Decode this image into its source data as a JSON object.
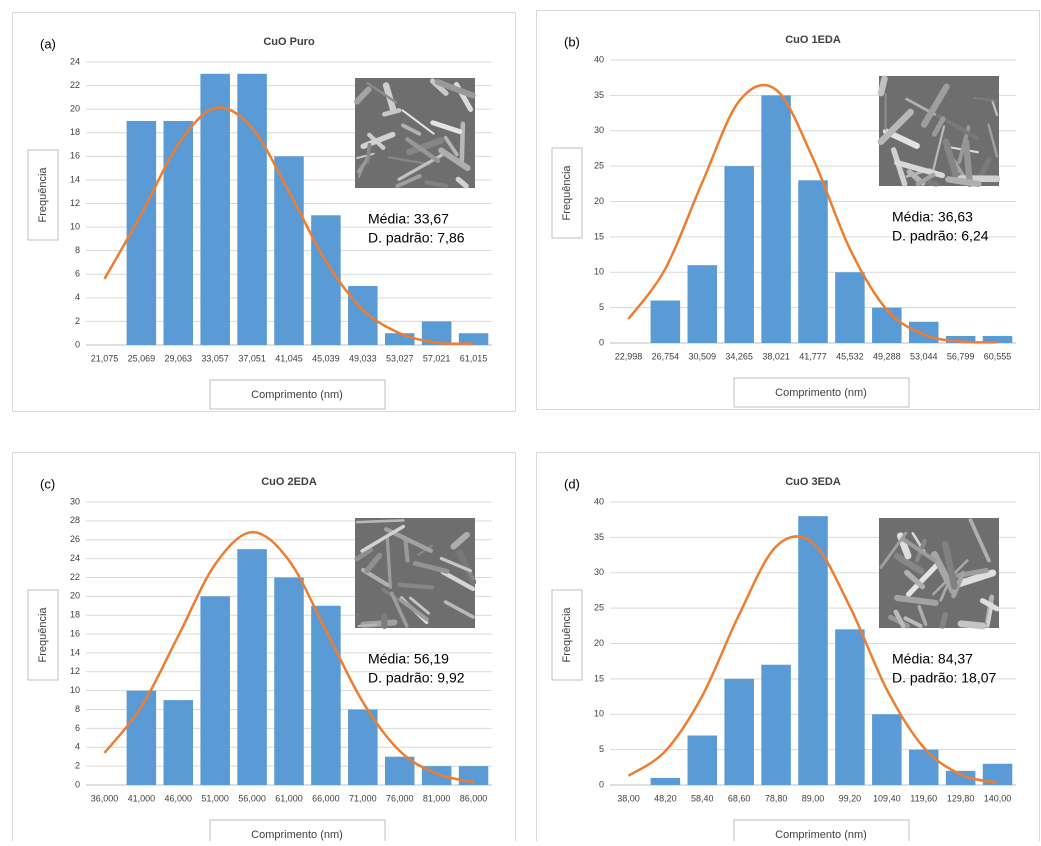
{
  "chart_data": [
    {
      "type": "bar",
      "panel_label": "(a)",
      "title": "CuO Puro",
      "ylabel": "Frequência",
      "xlabel": "Comprimento (nm)",
      "categories": [
        "21,075",
        "25,069",
        "29,063",
        "33,057",
        "37,051",
        "41,045",
        "45,039",
        "49,033",
        "53,027",
        "57,021",
        "61,015"
      ],
      "series": [
        {
          "type": "bar",
          "color": "#5b9bd5",
          "values": [
            0,
            19,
            19,
            23,
            23,
            16,
            11,
            5,
            1,
            2,
            1
          ]
        },
        {
          "type": "line",
          "color": "#ed7d31",
          "values": [
            5.6,
            11.1,
            17.0,
            20.1,
            18.4,
            13.0,
            7.1,
            3.0,
            1.0,
            0.2,
            0.1
          ]
        }
      ],
      "ylim": [
        0,
        24
      ],
      "yticks": [
        0,
        2,
        4,
        6,
        8,
        10,
        12,
        14,
        16,
        18,
        20,
        22,
        24
      ],
      "grid": true,
      "annotations": [
        "Média: 33,67",
        "D. padrão: 7,86"
      ]
    },
    {
      "type": "bar",
      "panel_label": "(b)",
      "title": "CuO 1EDA",
      "ylabel": "Frequência",
      "xlabel": "Comprimento (nm)",
      "categories": [
        "22,998",
        "26,754",
        "30,509",
        "34,265",
        "38,021",
        "41,777",
        "45,532",
        "49,288",
        "53,044",
        "56,799",
        "60,555"
      ],
      "series": [
        {
          "type": "bar",
          "color": "#5b9bd5",
          "values": [
            0,
            6,
            11,
            25,
            35,
            23,
            10,
            5,
            3,
            1,
            1
          ]
        },
        {
          "type": "line",
          "color": "#ed7d31",
          "values": [
            3.4,
            10.5,
            22.7,
            34.2,
            35.8,
            26.1,
            13.3,
            4.7,
            1.2,
            0.2,
            0.1
          ]
        }
      ],
      "ylim": [
        0,
        40
      ],
      "yticks": [
        0,
        5,
        10,
        15,
        20,
        25,
        30,
        35,
        40
      ],
      "grid": true,
      "annotations": [
        "Média: 36,63",
        "D. padrão: 6,24"
      ]
    },
    {
      "type": "bar",
      "panel_label": "(c)",
      "title": "CuO 2EDA",
      "ylabel": "Frequência",
      "xlabel": "Comprimento (nm)",
      "categories": [
        "36,000",
        "41,000",
        "46,000",
        "51,000",
        "56,000",
        "61,000",
        "66,000",
        "71,000",
        "76,000",
        "81,000",
        "86,000"
      ],
      "series": [
        {
          "type": "bar",
          "color": "#5b9bd5",
          "values": [
            0,
            10,
            9,
            20,
            25,
            22,
            19,
            8,
            3,
            2,
            2
          ]
        },
        {
          "type": "line",
          "color": "#ed7d31",
          "values": [
            3.4,
            8.3,
            15.8,
            23.4,
            26.8,
            23.8,
            16.4,
            8.8,
            3.6,
            1.2,
            0.3
          ]
        }
      ],
      "ylim": [
        0,
        30
      ],
      "yticks": [
        0,
        2,
        4,
        6,
        8,
        10,
        12,
        14,
        16,
        18,
        20,
        22,
        24,
        26,
        28,
        30
      ],
      "grid": true,
      "annotations": [
        "Média: 56,19",
        "D. padrão: 9,92"
      ]
    },
    {
      "type": "bar",
      "panel_label": "(d)",
      "title": "CuO 3EDA",
      "ylabel": "Frequência",
      "xlabel": "Comprimento (nm)",
      "categories": [
        "38,00",
        "48,20",
        "58,40",
        "68,60",
        "78,80",
        "89,00",
        "99,20",
        "109,40",
        "119,60",
        "129,80",
        "140,00"
      ],
      "series": [
        {
          "type": "bar",
          "color": "#5b9bd5",
          "values": [
            0,
            1,
            7,
            15,
            17,
            38,
            22,
            10,
            5,
            2,
            3
          ]
        },
        {
          "type": "line",
          "color": "#ed7d31",
          "values": [
            1.3,
            4.8,
            12.6,
            24.1,
            33.7,
            34.2,
            25.2,
            13.5,
            5.3,
            1.5,
            0.3
          ]
        }
      ],
      "ylim": [
        0,
        40
      ],
      "yticks": [
        0,
        5,
        10,
        15,
        20,
        25,
        30,
        35,
        40
      ],
      "grid": true,
      "annotations": [
        "Média: 84,37",
        "D. padrão: 18,07"
      ]
    }
  ]
}
